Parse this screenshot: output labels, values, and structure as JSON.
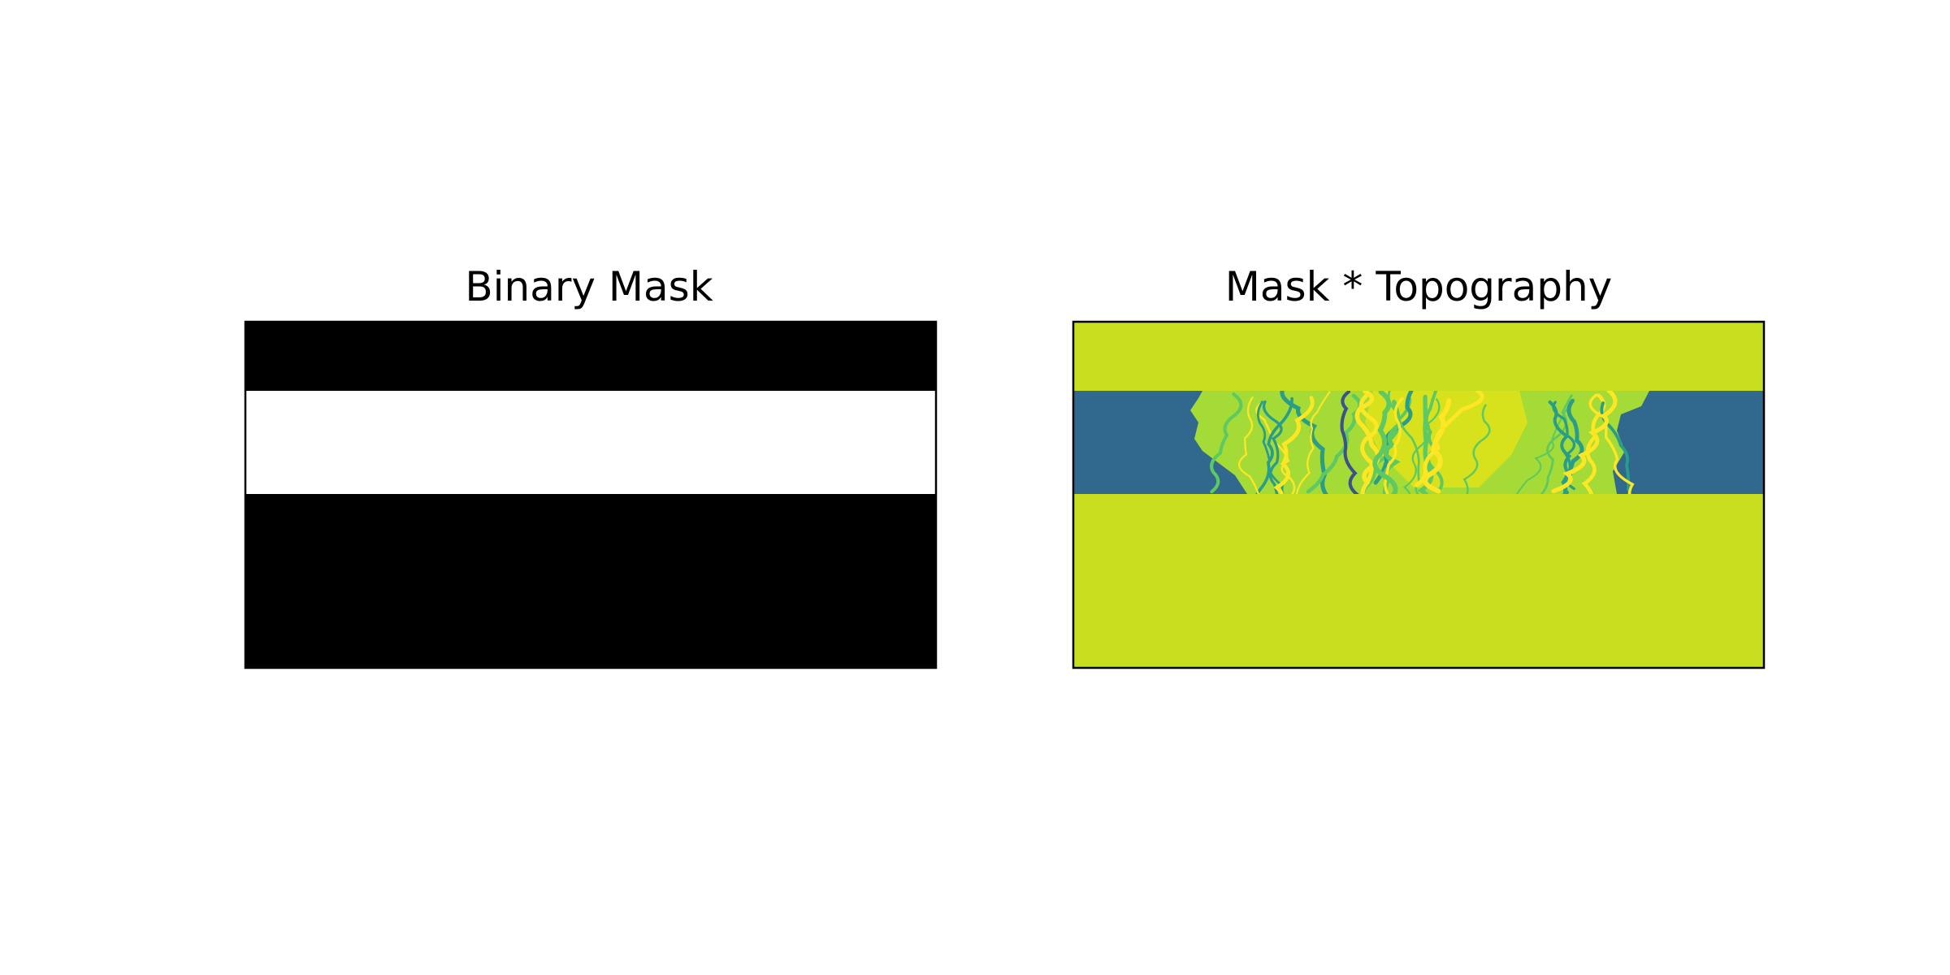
{
  "chart_data": [
    {
      "type": "heatmap",
      "title": "Binary Mask",
      "colormap": "gray",
      "bands": [
        {
          "value": 0,
          "color": "#000000"
        },
        {
          "value": 1,
          "color": "#ffffff"
        },
        {
          "value": 0,
          "color": "#000000"
        }
      ],
      "axes_visible": false
    },
    {
      "type": "heatmap",
      "title": "Mask * Topography",
      "colormap": "viridis",
      "background_color": "#c8df1f",
      "masked_band_color": "#31688e",
      "terrain_colors": [
        "#31688e",
        "#2a9d8a",
        "#5ec962",
        "#a5db36",
        "#dde21b",
        "#fde725",
        "#3b528b"
      ],
      "axes_visible": false
    }
  ]
}
